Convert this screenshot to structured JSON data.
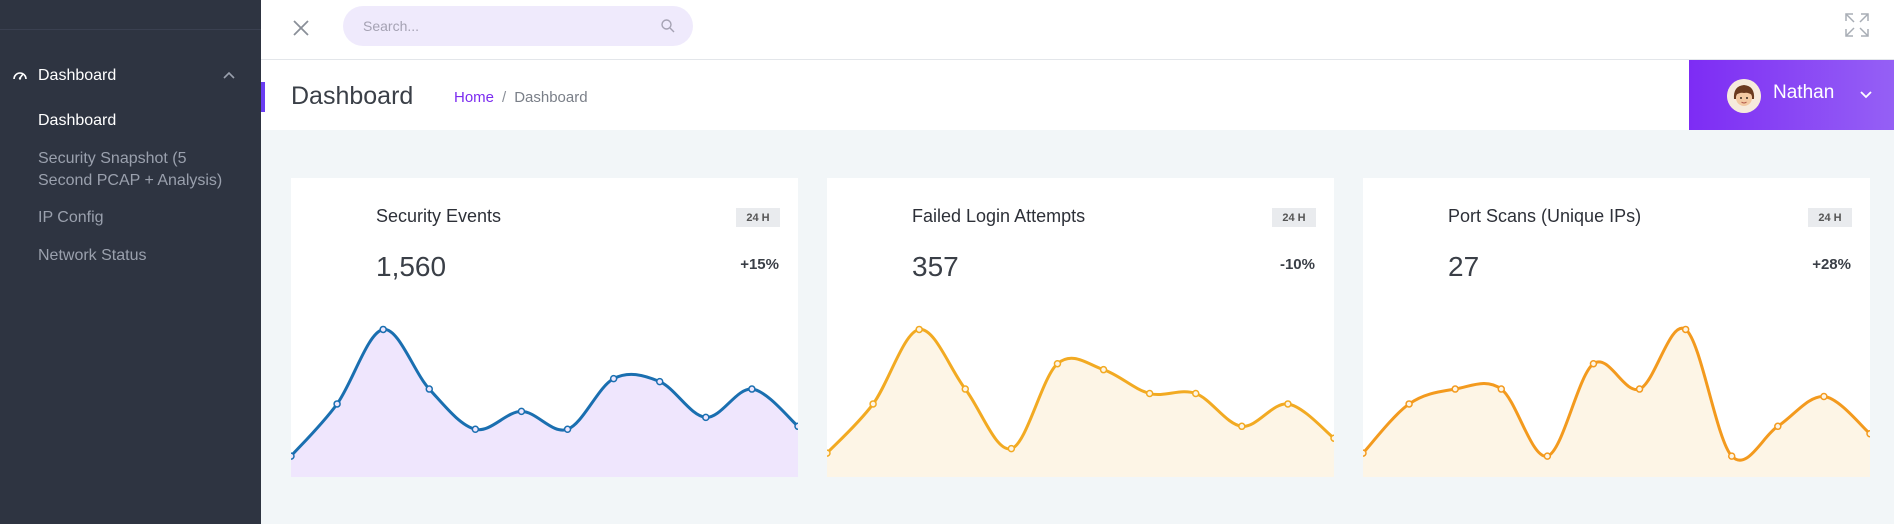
{
  "search": {
    "placeholder": "Search..."
  },
  "sidebar": {
    "group_label": "Dashboard",
    "items": [
      {
        "label": "Dashboard",
        "active": true
      },
      {
        "label": "Security Snapshot (5 Second PCAP + Analysis)",
        "active": false
      },
      {
        "label": "IP Config",
        "active": false
      },
      {
        "label": "Network Status",
        "active": false
      }
    ]
  },
  "header": {
    "title": "Dashboard",
    "breadcrumb": {
      "home": "Home",
      "separator": "/",
      "current": "Dashboard"
    }
  },
  "user": {
    "name": "Nathan"
  },
  "icons": {
    "close": "close-icon",
    "search": "search-icon",
    "expand": "fullscreen-icon",
    "dashboard": "dashboard-gauge-icon",
    "chevron": "chevron-icon"
  },
  "colors": {
    "sidebar_bg": "#2e3441",
    "accent": "#7c2cf0",
    "blue_line": "#1a6fb0",
    "blue_fill": "#efe6fd",
    "amber_line": "#f2aa22",
    "orange_line": "#f39a1e",
    "warm_fill": "#fdf5e6"
  },
  "cards": [
    {
      "title": "Security Events",
      "badge": "24 H",
      "value": "1,560",
      "change": "+15%",
      "line_color": "#1a6fb0",
      "fill_color": "#efe6fd",
      "series": [
        10,
        45,
        95,
        55,
        28,
        40,
        28,
        62,
        60,
        36,
        55,
        30
      ]
    },
    {
      "title": "Failed Login Attempts",
      "badge": "24 H",
      "value": "357",
      "change": "-10%",
      "line_color": "#f2aa22",
      "fill_color": "#fdf5e6",
      "series": [
        12,
        45,
        95,
        55,
        15,
        72,
        68,
        52,
        52,
        30,
        45,
        22
      ]
    },
    {
      "title": "Port Scans (Unique IPs)",
      "badge": "24 H",
      "value": "27",
      "change": "+28%",
      "line_color": "#f39a1e",
      "fill_color": "#fdf5e6",
      "series": [
        12,
        45,
        55,
        55,
        10,
        72,
        55,
        95,
        10,
        30,
        50,
        25
      ]
    }
  ]
}
